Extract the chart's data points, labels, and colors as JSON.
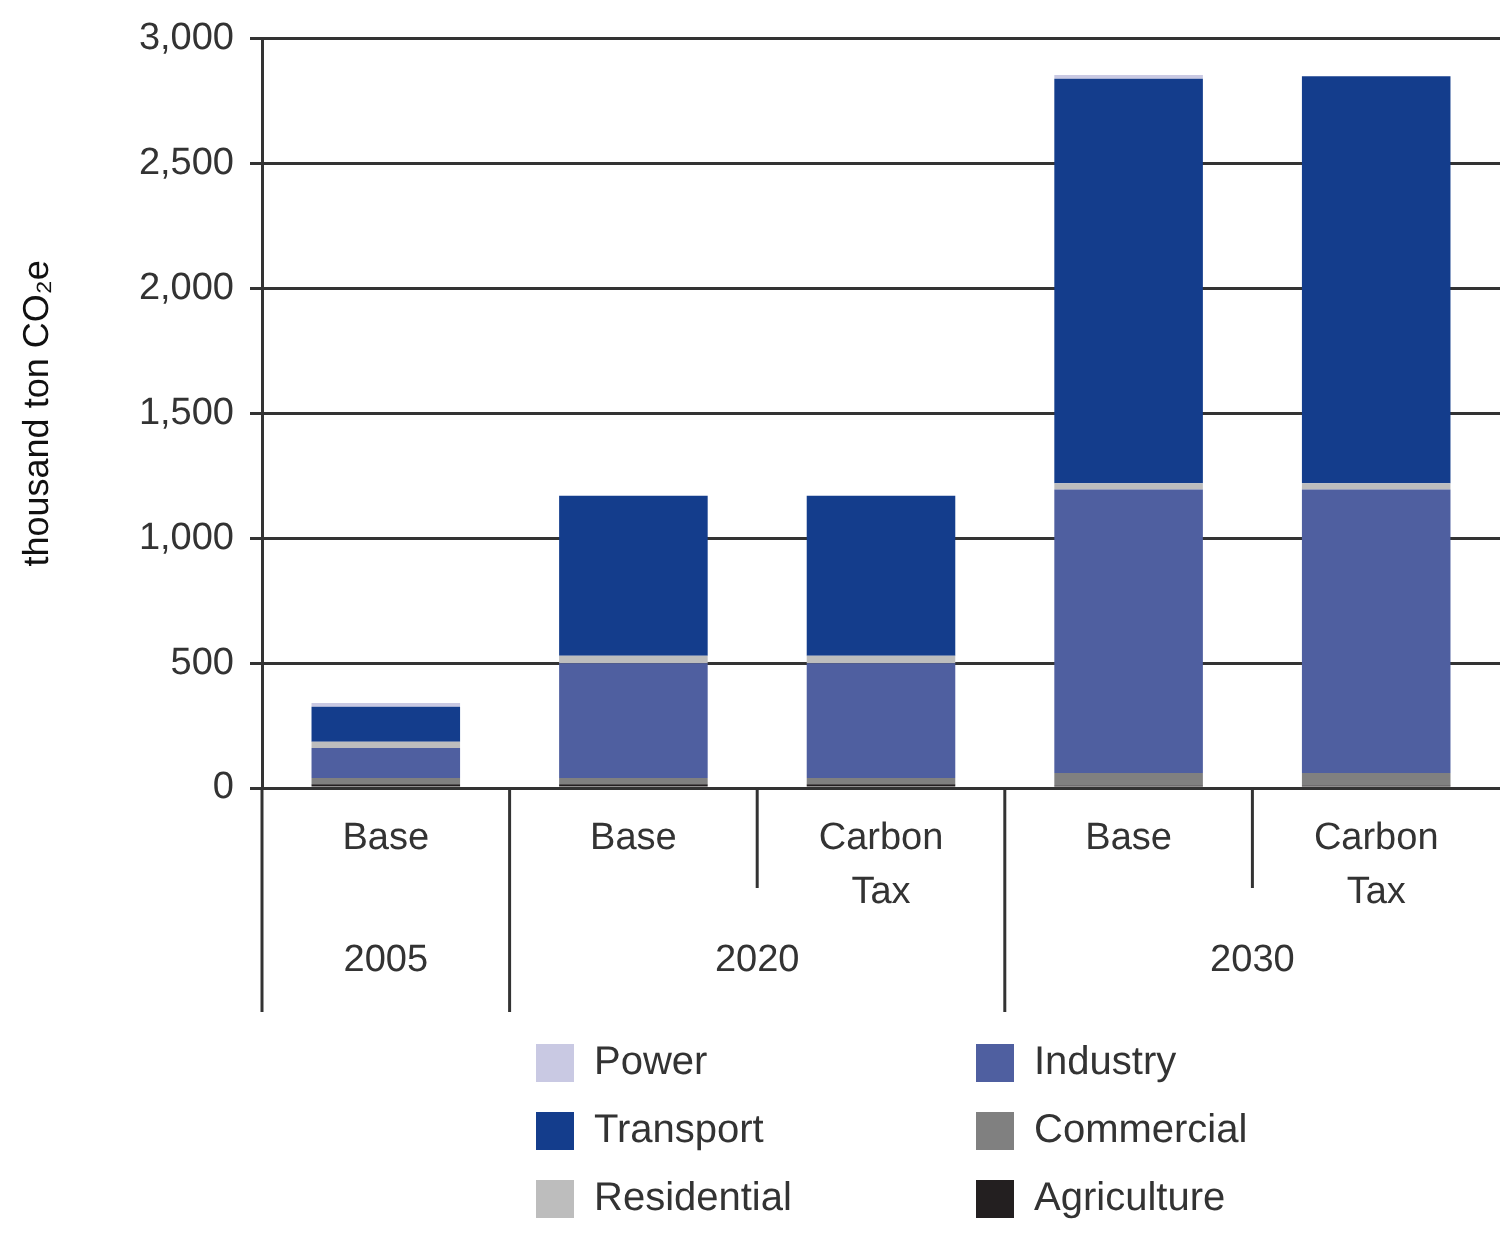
{
  "chart_data": {
    "type": "bar",
    "stacked": true,
    "ylabel": "thousand ton CO₂e",
    "categories": [
      "Base",
      "Base",
      "Carbon Tax",
      "Base",
      "Carbon Tax"
    ],
    "annotations": [
      "2005",
      "2020",
      "2030"
    ],
    "series": [
      {
        "name": "Agriculture",
        "color": "#231f20",
        "values": [
          15,
          15,
          15,
          10,
          10
        ]
      },
      {
        "name": "Commercial",
        "color": "#808080",
        "values": [
          25,
          25,
          25,
          50,
          50
        ]
      },
      {
        "name": "Industry",
        "color": "#4f5fa0",
        "values": [
          120,
          460,
          460,
          1135,
          1135
        ]
      },
      {
        "name": "Residential",
        "color": "#bdbdbd",
        "values": [
          25,
          30,
          30,
          25,
          25
        ]
      },
      {
        "name": "Transport",
        "color": "#143d8c",
        "values": [
          140,
          640,
          640,
          1620,
          1630
        ]
      },
      {
        "name": "Power",
        "color": "#c9c9e3",
        "values": [
          15,
          0,
          0,
          15,
          0
        ]
      }
    ],
    "ylim": [
      0,
      3000
    ],
    "yticks": [
      {
        "value": 0,
        "label": "0"
      },
      {
        "value": 500,
        "label": "500"
      },
      {
        "value": 1000,
        "label": "1,000"
      },
      {
        "value": 1500,
        "label": "1,500"
      },
      {
        "value": 2000,
        "label": "2,000"
      },
      {
        "value": 2500,
        "label": "2,500"
      },
      {
        "value": 3000,
        "label": "3,000"
      }
    ],
    "grid": "y",
    "legend": "bottom"
  }
}
